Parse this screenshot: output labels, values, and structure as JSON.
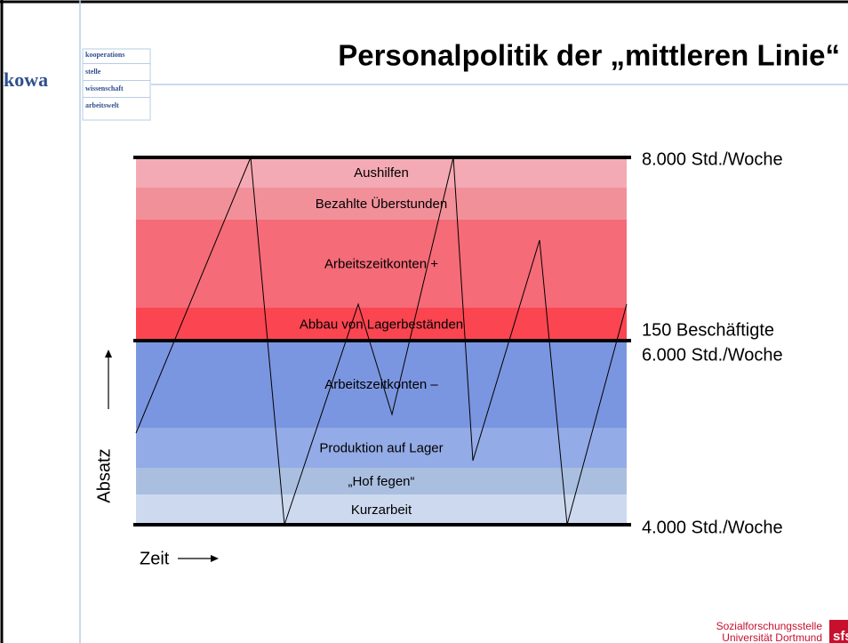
{
  "logo": {
    "main": "kowa",
    "lines": [
      "kooperations",
      "stelle",
      "wissenschaft",
      "arbeitswelt"
    ]
  },
  "title": "Personalpolitik der „mittleren Linie“",
  "bands": [
    "Aushilfen",
    "Bezahlte Überstunden",
    "Arbeitszeitkonten +",
    "Abbau von Lagerbeständen",
    "Arbeitszeitkonten –",
    "Produktion auf Lager",
    "„Hof fegen“",
    "Kurzarbeit"
  ],
  "levels": [
    "8.000 Std./Woche",
    "150 Beschäftigte",
    "6.000 Std./Woche",
    "4.000 Std./Woche"
  ],
  "axis_y": "Absatz",
  "axis_x": "Zeit",
  "footer": {
    "line1": "Sozialforschungsstelle",
    "line2": "Universität Dortmund",
    "badge": "sfs"
  }
}
